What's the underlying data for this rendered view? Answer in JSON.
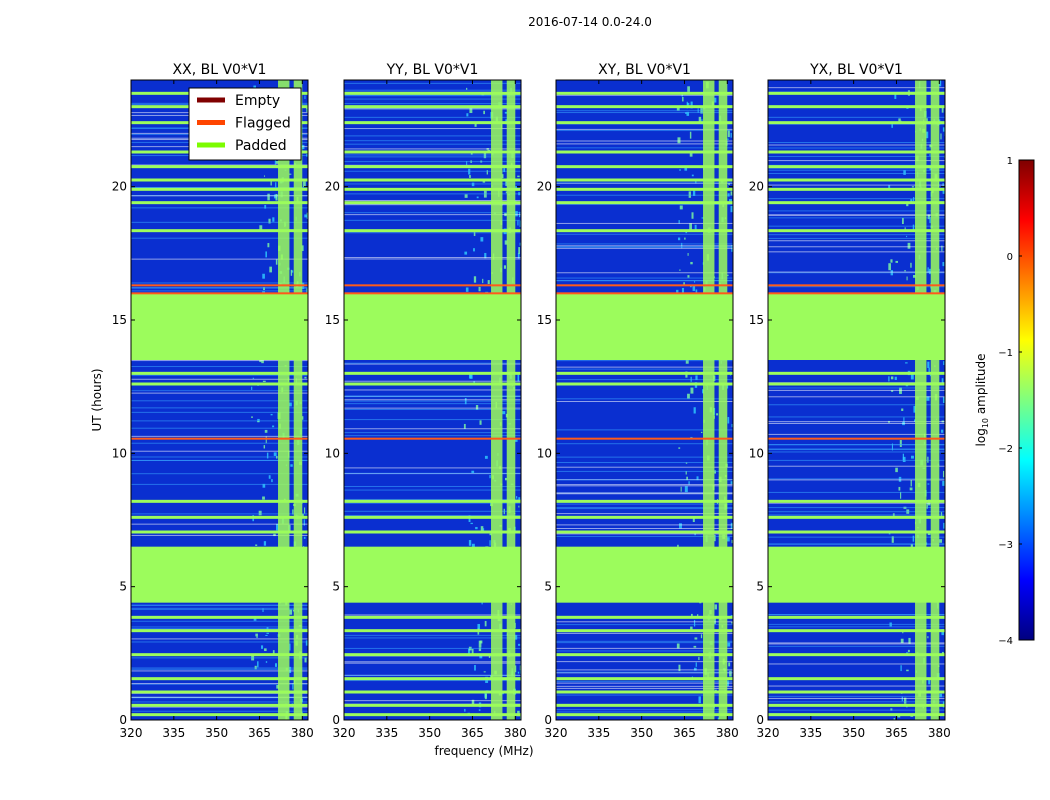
{
  "chart_data": {
    "type": "heatmap",
    "suptitle": "2016-07-14 0.0-24.0",
    "xlabel": "frequency (MHz)",
    "ylabel": "UT (hours)",
    "xlim": [
      320,
      382
    ],
    "ylim": [
      0,
      24
    ],
    "xticks": [
      320,
      335,
      350,
      365,
      380
    ],
    "yticks": [
      0,
      5,
      10,
      15,
      20
    ],
    "panels": [
      {
        "title": "XX, BL V0*V1",
        "show_legend": true
      },
      {
        "title": "YY, BL V0*V1",
        "show_legend": false
      },
      {
        "title": "XY, BL V0*V1",
        "show_legend": false
      },
      {
        "title": "YX, BL V0*V1",
        "show_legend": false
      }
    ],
    "legend": {
      "location": "upper-right of first panel",
      "entries": [
        {
          "label": "Empty",
          "color": "#800000"
        },
        {
          "label": "Flagged",
          "color": "#ff4500"
        },
        {
          "label": "Padded",
          "color": "#7cfc00"
        }
      ]
    },
    "padded_intervals_hours": [
      [
        4.4,
        6.5
      ],
      [
        13.5,
        16.0
      ]
    ],
    "flagged_lines_hours": [
      10.55,
      16.0,
      16.3
    ],
    "padded_horizontal_bands_hours": [
      0.2,
      0.55,
      1.05,
      1.55,
      2.45,
      3.35,
      3.85,
      7.05,
      7.6,
      8.2,
      12.6,
      13.0,
      18.35,
      19.4,
      19.9,
      20.25,
      20.75,
      21.3,
      22.4,
      23.0,
      23.5
    ],
    "padded_channel_bands_mhz": [
      [
        371.5,
        375.5
      ],
      [
        377.0,
        380.0
      ]
    ],
    "rfi_channel_band_mhz": [
      [
        362,
        382
      ]
    ],
    "colorbar": {
      "label": "log",
      "label_subscript": "10",
      "label_suffix": " amplitude",
      "range": [
        -4,
        1
      ],
      "ticks": [
        "1",
        "0",
        "−1",
        "−2",
        "−3",
        "−4"
      ],
      "tick_values": [
        1,
        0,
        -1,
        -2,
        -3,
        -4
      ],
      "colors": [
        "#00007f",
        "#0000ff",
        "#007fff",
        "#00ffff",
        "#7fff7f",
        "#ffff00",
        "#ff7f00",
        "#ff0000",
        "#7f0000"
      ]
    },
    "background_color": "#0a2fd0",
    "padded_color": "#9cfc5c",
    "flagged_color": "#ff5a1a"
  }
}
